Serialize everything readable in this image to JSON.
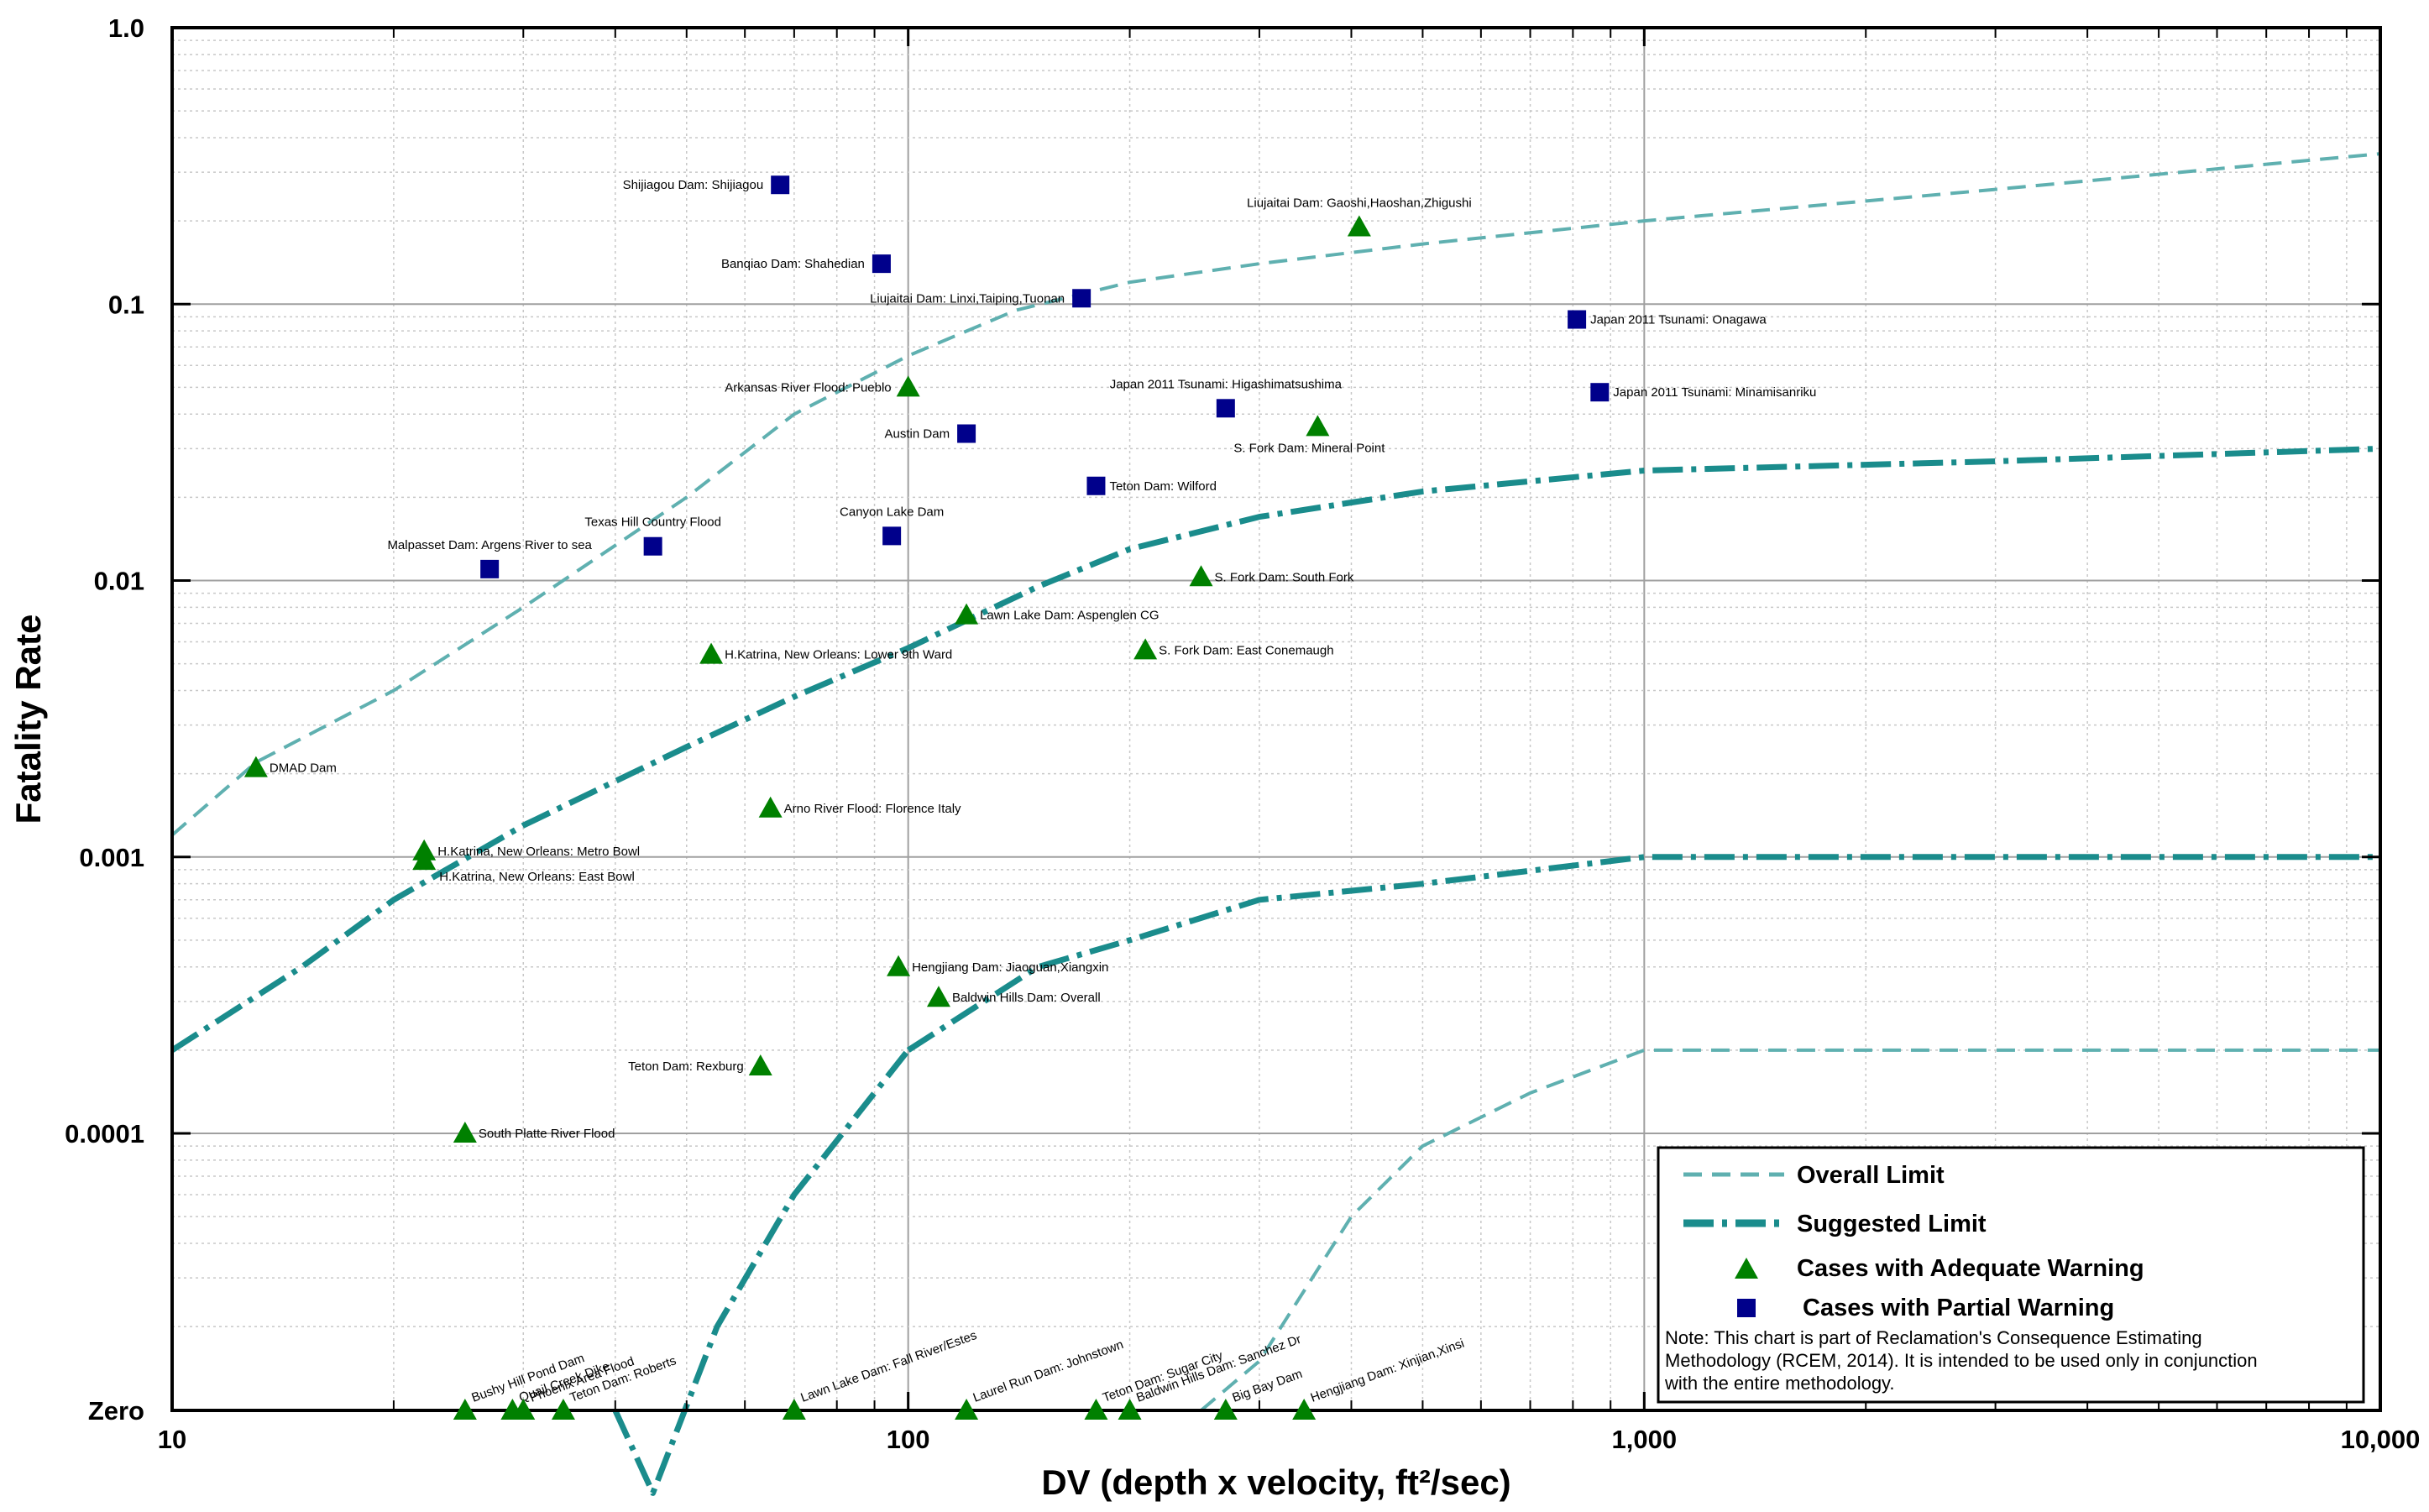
{
  "chart_data": {
    "type": "scatter",
    "xlabel": "DV (depth x velocity, ft²/sec)",
    "ylabel": "Fatality Rate",
    "x_scale": "log",
    "y_scale": "log",
    "xlim": [
      10,
      10000
    ],
    "ylim": [
      "Zero",
      1.0
    ],
    "x_tick_labels": [
      "10",
      "100",
      "1,000",
      "10,000"
    ],
    "y_tick_labels": [
      "Zero",
      "0.0001",
      "0.001",
      "0.01",
      "0.1",
      "1.0"
    ],
    "grid": true,
    "legend_position": "bottom-right",
    "legend": {
      "overall": "Overall Limit",
      "suggested": "Suggested Limit",
      "adequate": "Cases with Adequate Warning",
      "partial": "Cases with Partial Warning"
    },
    "note_lines": [
      "Note:  This chart is part of Reclamation's Consequence Estimating",
      "Methodology (RCEM, 2014).  It is intended to be used only in conjunction",
      "with the entire methodology."
    ],
    "colors": {
      "adequate": "#008000",
      "partial": "#00008b",
      "overall": "#5fb0b0",
      "suggested": "#1a8c8c",
      "grid": "#a0a0a0"
    },
    "lines": [
      {
        "group": "overall",
        "points": [
          [
            10,
            0.0012
          ],
          [
            13,
            0.0022
          ],
          [
            20,
            0.004
          ],
          [
            30,
            0.008
          ],
          [
            50,
            0.02
          ],
          [
            70,
            0.04
          ],
          [
            100,
            0.065
          ],
          [
            140,
            0.095
          ],
          [
            200,
            0.12
          ],
          [
            300,
            0.14
          ],
          [
            500,
            0.165
          ],
          [
            1000,
            0.2
          ],
          [
            3000,
            0.26
          ],
          [
            10000,
            0.35
          ]
        ]
      },
      {
        "group": "suggested",
        "points": [
          [
            10,
            0.0002
          ],
          [
            15,
            0.0004
          ],
          [
            20,
            0.0007
          ],
          [
            30,
            0.0013
          ],
          [
            50,
            0.0025
          ],
          [
            70,
            0.0038
          ],
          [
            100,
            0.0057
          ],
          [
            150,
            0.0095
          ],
          [
            200,
            0.013
          ],
          [
            300,
            0.017
          ],
          [
            500,
            0.021
          ],
          [
            1000,
            0.025
          ],
          [
            3000,
            0.027
          ],
          [
            10000,
            0.03
          ]
        ]
      },
      {
        "group": "suggested",
        "points": [
          [
            100,
            0.0002
          ],
          [
            150,
            0.0004
          ],
          [
            200,
            0.0005
          ],
          [
            300,
            0.0007
          ],
          [
            500,
            0.0008
          ],
          [
            1000,
            0.001
          ],
          [
            10000,
            0.001
          ]
        ]
      },
      {
        "group": "suggested",
        "points": [
          [
            40,
            "Zero"
          ],
          [
            45,
            5e-06
          ],
          [
            55,
            2e-05
          ],
          [
            70,
            6e-05
          ],
          [
            100,
            0.0002
          ]
        ]
      },
      {
        "group": "overall",
        "points": [
          [
            250,
            "Zero"
          ],
          [
            300,
            1.5e-05
          ],
          [
            400,
            5e-05
          ],
          [
            500,
            9e-05
          ],
          [
            700,
            0.00014
          ],
          [
            1000,
            0.0002
          ],
          [
            10000,
            0.0002
          ]
        ]
      }
    ],
    "points": [
      {
        "label": "Shijiagou Dam: Shijiagou",
        "x": 67,
        "y": 0.27,
        "group": "partial"
      },
      {
        "label": "Liujaitai Dam: Gaoshi,Haoshan,Zhigushi",
        "x": 410,
        "y": 0.19,
        "group": "adequate"
      },
      {
        "label": "Banqiao Dam: Shahedian",
        "x": 92,
        "y": 0.14,
        "group": "partial"
      },
      {
        "label": "Liujaitai Dam: Linxi,Taiping,Tuonan",
        "x": 172,
        "y": 0.105,
        "group": "partial"
      },
      {
        "label": "Japan 2011 Tsunami: Onagawa",
        "x": 810,
        "y": 0.088,
        "group": "partial"
      },
      {
        "label": "Arkansas River Flood: Pueblo",
        "x": 100,
        "y": 0.05,
        "group": "adequate"
      },
      {
        "label": "Japan 2011 Tsunami: Minamisanriku",
        "x": 870,
        "y": 0.048,
        "group": "partial"
      },
      {
        "label": "Japan 2011 Tsunami: Higashimatsushima",
        "x": 270,
        "y": 0.042,
        "group": "partial"
      },
      {
        "label": "S. Fork Dam: Mineral Point",
        "x": 360,
        "y": 0.036,
        "group": "adequate"
      },
      {
        "label": "Austin Dam",
        "x": 120,
        "y": 0.034,
        "group": "partial"
      },
      {
        "label": "Teton Dam: Wilford",
        "x": 180,
        "y": 0.022,
        "group": "partial"
      },
      {
        "label": "Canyon Lake Dam",
        "x": 95,
        "y": 0.0145,
        "group": "partial"
      },
      {
        "label": "Texas Hill Country Flood",
        "x": 45,
        "y": 0.0133,
        "group": "partial"
      },
      {
        "label": "Malpasset Dam: Argens River to sea",
        "x": 27,
        "y": 0.011,
        "group": "partial"
      },
      {
        "label": "S. Fork Dam: South Fork",
        "x": 250,
        "y": 0.0103,
        "group": "adequate"
      },
      {
        "label": "Lawn Lake Dam: Aspenglen CG",
        "x": 120,
        "y": 0.0075,
        "group": "adequate"
      },
      {
        "label": "H.Katrina, New Orleans: Lower 9th Ward",
        "x": 54,
        "y": 0.0054,
        "group": "adequate"
      },
      {
        "label": "S. Fork Dam: East Conemaugh",
        "x": 210,
        "y": 0.0056,
        "group": "adequate"
      },
      {
        "label": "DMAD Dam",
        "x": 13,
        "y": 0.0021,
        "group": "adequate"
      },
      {
        "label": "Arno River Flood: Florence Italy",
        "x": 65,
        "y": 0.0015,
        "group": "adequate"
      },
      {
        "label": "H.Katrina, New Orleans: Metro Bowl",
        "x": 22,
        "y": 0.00105,
        "group": "adequate"
      },
      {
        "label": "H.Katrina, New Orleans: East Bowl",
        "x": 22,
        "y": 0.00097,
        "group": "adequate"
      },
      {
        "label": "Hengjiang Dam: Jiaoguan,Xiangxin",
        "x": 97,
        "y": 0.0004,
        "group": "adequate"
      },
      {
        "label": "Baldwin Hills Dam: Overall",
        "x": 110,
        "y": 0.00031,
        "group": "adequate"
      },
      {
        "label": "Teton Dam: Rexburg",
        "x": 63,
        "y": 0.000175,
        "group": "adequate"
      },
      {
        "label": "South Platte River Flood",
        "x": 25,
        "y": 0.0001,
        "group": "adequate"
      },
      {
        "label": "Bushy Hill Pond Dam",
        "x": 25,
        "y": "Zero",
        "group": "adequate"
      },
      {
        "label": "Quail Creek Dike",
        "x": 29,
        "y": "Zero",
        "group": "adequate"
      },
      {
        "label": "Phoenix Area Flood",
        "x": 30,
        "y": "Zero",
        "group": "adequate"
      },
      {
        "label": "Teton Dam: Roberts",
        "x": 34,
        "y": "Zero",
        "group": "adequate"
      },
      {
        "label": "Lawn Lake Dam: Fall River/Estes",
        "x": 70,
        "y": "Zero",
        "group": "adequate"
      },
      {
        "label": "Laurel Run Dam: Johnstown",
        "x": 120,
        "y": "Zero",
        "group": "adequate"
      },
      {
        "label": "Teton Dam: Sugar City",
        "x": 180,
        "y": "Zero",
        "group": "adequate"
      },
      {
        "label": "Baldwin Hills Dam: Sanchez Dr",
        "x": 200,
        "y": "Zero",
        "group": "adequate"
      },
      {
        "label": "Big Bay Dam",
        "x": 270,
        "y": "Zero",
        "group": "adequate"
      },
      {
        "label": "Hengjiang Dam: Xinjian,Xinsi",
        "x": 345,
        "y": "Zero",
        "group": "adequate"
      }
    ]
  }
}
